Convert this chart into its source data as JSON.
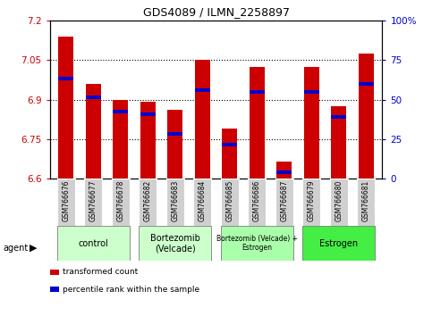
{
  "title": "GDS4089 / ILMN_2258897",
  "samples": [
    "GSM766676",
    "GSM766677",
    "GSM766678",
    "GSM766682",
    "GSM766683",
    "GSM766684",
    "GSM766685",
    "GSM766686",
    "GSM766687",
    "GSM766679",
    "GSM766680",
    "GSM766681"
  ],
  "bar_values": [
    7.14,
    6.96,
    6.9,
    6.89,
    6.86,
    7.05,
    6.79,
    7.025,
    6.665,
    7.025,
    6.875,
    7.075
  ],
  "percentile_values": [
    6.98,
    6.91,
    6.855,
    6.845,
    6.77,
    6.935,
    6.73,
    6.93,
    6.625,
    6.93,
    6.835,
    6.96
  ],
  "y_min": 6.6,
  "y_max": 7.2,
  "y_ticks": [
    6.6,
    6.75,
    6.9,
    7.05,
    7.2
  ],
  "y_tick_labels": [
    "6.6",
    "6.75",
    "6.9",
    "7.05",
    "7.2"
  ],
  "y2_ticks": [
    0,
    25,
    50,
    75,
    100
  ],
  "y2_tick_labels": [
    "0",
    "25",
    "50",
    "75",
    "100%"
  ],
  "bar_color": "#cc0000",
  "percentile_color": "#0000cc",
  "xlabel_color": "#cc0000",
  "y2_color": "#0000cc",
  "agent_groups": [
    {
      "label": "control",
      "start": 0,
      "end": 2,
      "color": "#ccffcc",
      "fontsize": 7
    },
    {
      "label": "Bortezomib\n(Velcade)",
      "start": 3,
      "end": 5,
      "color": "#ccffcc",
      "fontsize": 7
    },
    {
      "label": "Bortezomib (Velcade) +\nEstrogen",
      "start": 6,
      "end": 8,
      "color": "#aaffaa",
      "fontsize": 5.5
    },
    {
      "label": "Estrogen",
      "start": 9,
      "end": 11,
      "color": "#44ee44",
      "fontsize": 7
    }
  ],
  "legend_items": [
    {
      "color": "#cc0000",
      "label": "transformed count"
    },
    {
      "color": "#0000cc",
      "label": "percentile rank within the sample"
    }
  ],
  "bar_width": 0.55,
  "tick_bg_color": "#d0d0d0",
  "figsize": [
    4.83,
    3.54
  ],
  "dpi": 100
}
